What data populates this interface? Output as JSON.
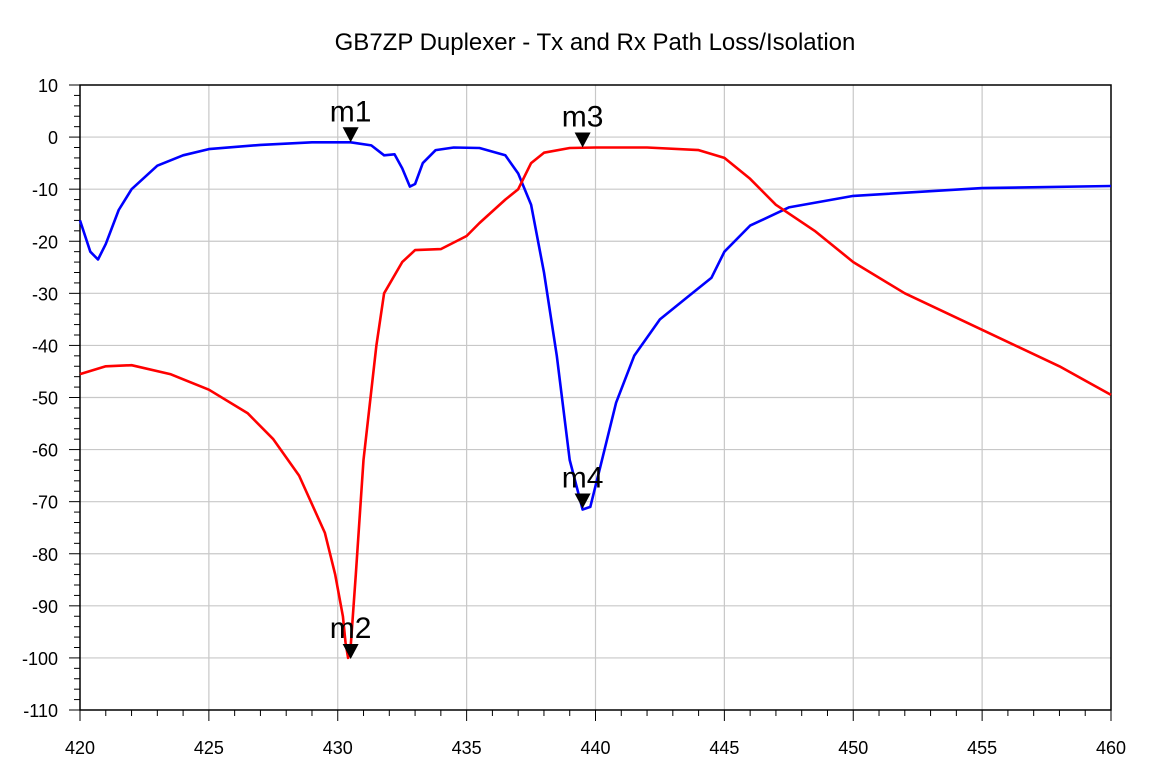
{
  "chart_data": {
    "type": "line",
    "title": "GB7ZP Duplexer - Tx and Rx Path Loss/Isolation",
    "xlabel": "",
    "ylabel": "",
    "xlim": [
      420,
      460
    ],
    "ylim": [
      -110,
      10
    ],
    "x_ticks": [
      420,
      425,
      430,
      435,
      440,
      445,
      450,
      455,
      460
    ],
    "y_ticks": [
      10,
      0,
      -10,
      -20,
      -30,
      -40,
      -50,
      -60,
      -70,
      -80,
      -90,
      -100,
      -110
    ],
    "grid": true,
    "series": [
      {
        "color": "#0000ff",
        "points": [
          [
            420.0,
            -16
          ],
          [
            420.4,
            -22
          ],
          [
            420.7,
            -23.5
          ],
          [
            421.0,
            -20.5
          ],
          [
            421.5,
            -14
          ],
          [
            422.0,
            -10
          ],
          [
            423.0,
            -5.5
          ],
          [
            424.0,
            -3.5
          ],
          [
            425.0,
            -2.3
          ],
          [
            427.0,
            -1.5
          ],
          [
            429.0,
            -1.0
          ],
          [
            430.5,
            -1.0
          ],
          [
            431.3,
            -1.6
          ],
          [
            431.8,
            -3.5
          ],
          [
            432.2,
            -3.3
          ],
          [
            432.5,
            -6
          ],
          [
            432.8,
            -9.5
          ],
          [
            433.0,
            -9
          ],
          [
            433.3,
            -5
          ],
          [
            433.8,
            -2.5
          ],
          [
            434.5,
            -2
          ],
          [
            435.5,
            -2.1
          ],
          [
            436.5,
            -3.5
          ],
          [
            437.0,
            -7
          ],
          [
            437.5,
            -13
          ],
          [
            438.0,
            -26
          ],
          [
            438.5,
            -42
          ],
          [
            439.0,
            -62
          ],
          [
            439.5,
            -71.5
          ],
          [
            439.8,
            -71
          ],
          [
            440.2,
            -63
          ],
          [
            440.8,
            -51
          ],
          [
            441.5,
            -42
          ],
          [
            442.5,
            -35
          ],
          [
            443.5,
            -31
          ],
          [
            444.5,
            -27
          ],
          [
            445.0,
            -22
          ],
          [
            446.0,
            -17
          ],
          [
            447.5,
            -13.5
          ],
          [
            450.0,
            -11.3
          ],
          [
            455.0,
            -9.8
          ],
          [
            460.0,
            -9.4
          ]
        ]
      },
      {
        "color": "#ff0000",
        "points": [
          [
            420.0,
            -45.5
          ],
          [
            421.0,
            -44
          ],
          [
            422.0,
            -43.8
          ],
          [
            423.5,
            -45.5
          ],
          [
            425.0,
            -48.5
          ],
          [
            426.5,
            -53
          ],
          [
            427.5,
            -58
          ],
          [
            428.5,
            -65
          ],
          [
            429.5,
            -76
          ],
          [
            429.9,
            -84
          ],
          [
            430.2,
            -92
          ],
          [
            430.3,
            -97
          ],
          [
            430.4,
            -100
          ],
          [
            430.5,
            -98
          ],
          [
            430.7,
            -84
          ],
          [
            431.0,
            -62
          ],
          [
            431.5,
            -40
          ],
          [
            431.8,
            -30
          ],
          [
            432.5,
            -24
          ],
          [
            433.0,
            -21.7
          ],
          [
            434.0,
            -21.5
          ],
          [
            435.0,
            -19
          ],
          [
            435.5,
            -16.5
          ],
          [
            436.5,
            -12
          ],
          [
            437.0,
            -10
          ],
          [
            437.5,
            -5
          ],
          [
            438.0,
            -3
          ],
          [
            439.0,
            -2.1
          ],
          [
            440.0,
            -2
          ],
          [
            442.0,
            -2
          ],
          [
            444.0,
            -2.5
          ],
          [
            445.0,
            -4
          ],
          [
            446.0,
            -8
          ],
          [
            447.0,
            -13
          ],
          [
            448.5,
            -18
          ],
          [
            450.0,
            -24
          ],
          [
            452.0,
            -30
          ],
          [
            455.0,
            -37
          ],
          [
            458.0,
            -44
          ],
          [
            460.0,
            -49.5
          ]
        ]
      }
    ],
    "markers": [
      {
        "label": "m1",
        "x": 430.5,
        "y": -1.0
      },
      {
        "label": "m2",
        "x": 430.5,
        "y": -100.2
      },
      {
        "label": "m3",
        "x": 439.5,
        "y": -2.0
      },
      {
        "label": "m4",
        "x": 439.5,
        "y": -71.3
      }
    ]
  }
}
